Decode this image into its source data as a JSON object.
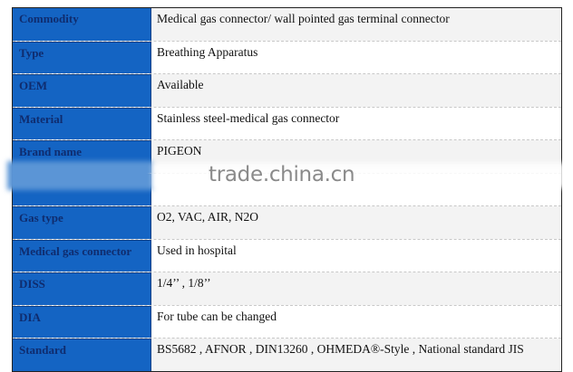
{
  "rows": [
    {
      "label": "Commodity",
      "value": "Medical  gas connector/    wall pointed gas terminal connector"
    },
    {
      "label": "Type",
      "value": "Breathing Apparatus"
    },
    {
      "label": "OEM",
      "value": "Available"
    },
    {
      "label": "Material",
      "value": "Stainless steel-medical gas connector"
    },
    {
      "label": "Brand name",
      "value": "PIGEON"
    },
    {
      "label": "",
      "value": ""
    },
    {
      "label": "Gas type",
      "value": "O2, VAC, AIR, N2O"
    },
    {
      "label": "Medical gas connector",
      "value": "Used in hospital"
    },
    {
      "label": "DISS",
      "value": "1/4’’ , 1/8’’"
    },
    {
      "label": "DIA",
      "value": "For tube can be changed"
    },
    {
      "label": "Standard",
      "value": "BS5682 , AFNOR , DIN13260 , OHMEDA®-Style , National standard JIS"
    }
  ],
  "watermark": "trade.china.cn",
  "colors": {
    "label_bg": "#1464c3",
    "label_text": "#0f2c6e",
    "alt_row": "#f3f3f3"
  }
}
